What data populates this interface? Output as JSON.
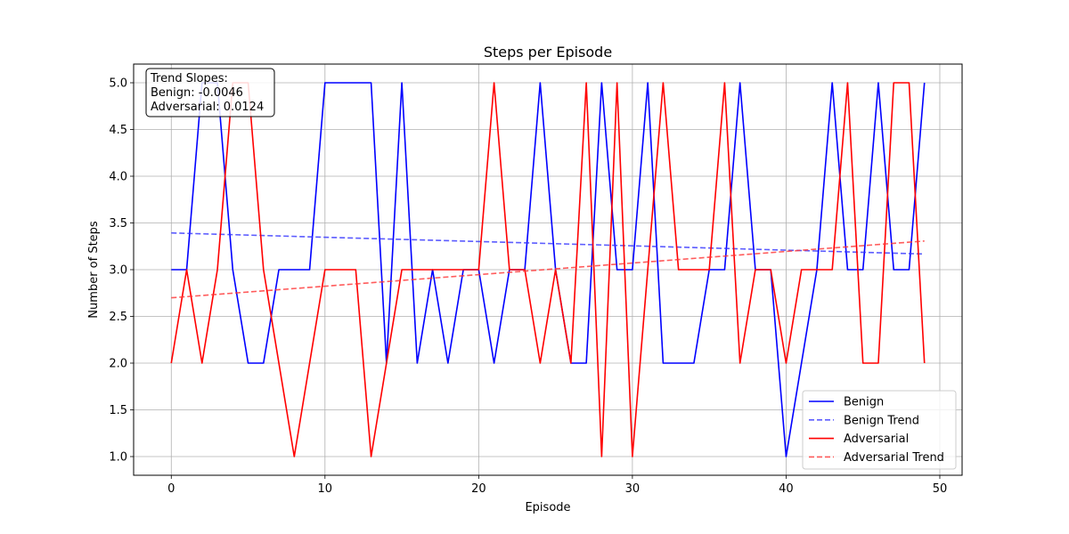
{
  "chart_data": {
    "type": "line",
    "title": "Steps per Episode",
    "xlabel": "Episode",
    "ylabel": "Number of Steps",
    "xlim": [
      -2.45,
      51.45
    ],
    "ylim": [
      0.8,
      5.2
    ],
    "xticks": [
      0,
      10,
      20,
      30,
      40,
      50
    ],
    "yticks": [
      1.0,
      1.5,
      2.0,
      2.5,
      3.0,
      3.5,
      4.0,
      4.5,
      5.0
    ],
    "ytick_labels": [
      "1.0",
      "1.5",
      "2.0",
      "2.5",
      "3.0",
      "3.5",
      "4.0",
      "4.5",
      "5.0"
    ],
    "grid": true,
    "legend_position": "lower-right",
    "x": [
      0,
      1,
      2,
      3,
      4,
      5,
      6,
      7,
      8,
      9,
      10,
      11,
      12,
      13,
      14,
      15,
      16,
      17,
      18,
      19,
      20,
      21,
      22,
      23,
      24,
      25,
      26,
      27,
      28,
      29,
      30,
      31,
      32,
      33,
      34,
      35,
      36,
      37,
      38,
      39,
      40,
      41,
      42,
      43,
      44,
      45,
      46,
      47,
      48,
      49
    ],
    "series": [
      {
        "name": "Benign",
        "color": "#0000ff",
        "style": "solid",
        "values": [
          3,
          3,
          5,
          5,
          3,
          2,
          2,
          3,
          3,
          3,
          5,
          5,
          5,
          5,
          2,
          5,
          2,
          3,
          2,
          3,
          3,
          2,
          3,
          3,
          5,
          3,
          2,
          2,
          5,
          3,
          3,
          5,
          2,
          2,
          2,
          3,
          3,
          5,
          3,
          3,
          1,
          2,
          3,
          5,
          3,
          3,
          5,
          3,
          3,
          5
        ]
      },
      {
        "name": "Benign Trend",
        "color": "#3333ff",
        "style": "dashed",
        "trend": [
          3.393,
          3.1676
        ]
      },
      {
        "name": "Adversarial",
        "color": "#ff0000",
        "style": "solid",
        "values": [
          2,
          3,
          2,
          3,
          5,
          5,
          3,
          2,
          1,
          2,
          3,
          3,
          3,
          1,
          2,
          3,
          3,
          3,
          3,
          3,
          3,
          5,
          3,
          3,
          2,
          3,
          2,
          5,
          1,
          5,
          1,
          3,
          5,
          3,
          3,
          3,
          5,
          2,
          3,
          3,
          2,
          3,
          3,
          3,
          5,
          2,
          2,
          5,
          5,
          2
        ]
      },
      {
        "name": "Adversarial Trend",
        "color": "#ff3333",
        "style": "dashed",
        "trend": [
          2.699,
          3.3066
        ]
      }
    ],
    "annotation": {
      "lines": [
        "Trend Slopes:",
        "Benign: -0.0046",
        "Adversarial: 0.0124"
      ]
    }
  }
}
